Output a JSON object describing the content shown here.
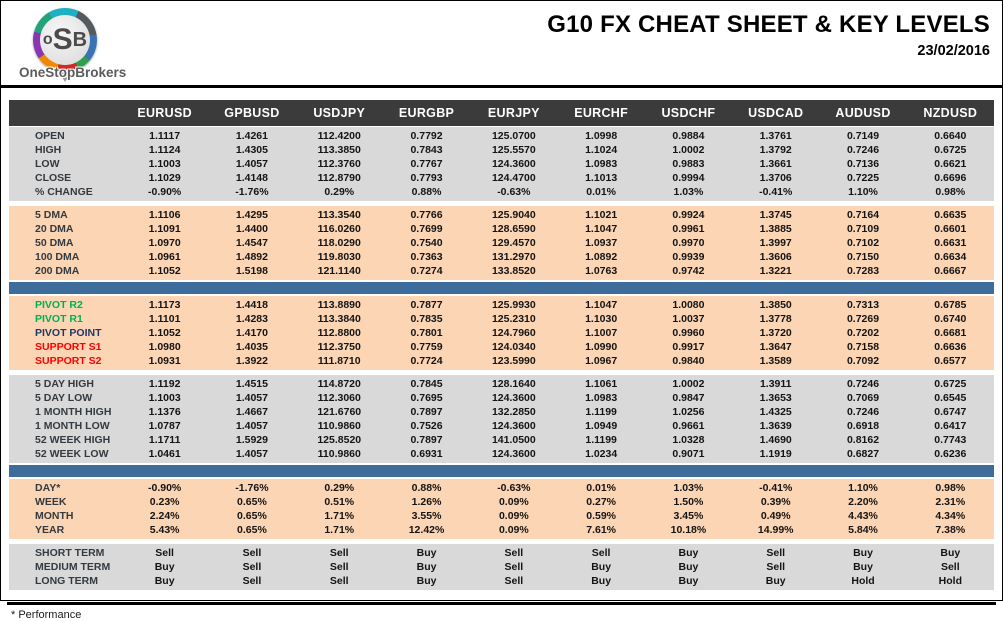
{
  "header": {
    "logo": {
      "part_o": "o",
      "part_s": "S",
      "part_b": "B",
      "brand": "OneStopBrokers"
    },
    "title": "G10 FX CHEAT SHEET & KEY LEVELS",
    "date": "23/02/2016"
  },
  "colors": {
    "header_bg": "#3b3b3b",
    "block_gray": "#d9d9d9",
    "block_peach": "#fcd5b4",
    "bar_blue": "#3f6d9b",
    "green": "#00b050",
    "red": "#ff0000",
    "navy": "#1f3864",
    "label_dark": "#333a40"
  },
  "table": {
    "columns": [
      "EURUSD",
      "GPBUSD",
      "USDJPY",
      "EURGBP",
      "EURJPY",
      "EURCHF",
      "USDCHF",
      "USDCAD",
      "AUDUSD",
      "NZDUSD"
    ],
    "sections": [
      {
        "id": "ohlc",
        "bg": "gray",
        "after": "gap",
        "rows": [
          {
            "label": "OPEN",
            "values": [
              "1.1117",
              "1.4261",
              "112.4200",
              "0.7792",
              "125.0700",
              "1.0998",
              "0.9884",
              "1.3761",
              "0.7149",
              "0.6640"
            ]
          },
          {
            "label": "HIGH",
            "values": [
              "1.1124",
              "1.4305",
              "113.3850",
              "0.7843",
              "125.5570",
              "1.1024",
              "1.0002",
              "1.3792",
              "0.7246",
              "0.6725"
            ]
          },
          {
            "label": "LOW",
            "values": [
              "1.1003",
              "1.4057",
              "112.3760",
              "0.7767",
              "124.3600",
              "1.0983",
              "0.9883",
              "1.3661",
              "0.7136",
              "0.6621"
            ]
          },
          {
            "label": "CLOSE",
            "values": [
              "1.1029",
              "1.4148",
              "112.8790",
              "0.7793",
              "124.4700",
              "1.1013",
              "0.9994",
              "1.3706",
              "0.7225",
              "0.6696"
            ]
          },
          {
            "label": "% CHANGE",
            "values": [
              "-0.90%",
              "-1.76%",
              "0.29%",
              "0.88%",
              "-0.63%",
              "0.01%",
              "1.03%",
              "-0.41%",
              "1.10%",
              "0.98%"
            ]
          }
        ]
      },
      {
        "id": "dma",
        "bg": "peach",
        "after": "divider",
        "rows": [
          {
            "label": "5 DMA",
            "values": [
              "1.1106",
              "1.4295",
              "113.3540",
              "0.7766",
              "125.9040",
              "1.1021",
              "0.9924",
              "1.3745",
              "0.7164",
              "0.6635"
            ]
          },
          {
            "label": "20 DMA",
            "values": [
              "1.1091",
              "1.4400",
              "116.0260",
              "0.7699",
              "128.6590",
              "1.1047",
              "0.9961",
              "1.3885",
              "0.7109",
              "0.6601"
            ]
          },
          {
            "label": "50 DMA",
            "values": [
              "1.0970",
              "1.4547",
              "118.0290",
              "0.7540",
              "129.4570",
              "1.0937",
              "0.9970",
              "1.3997",
              "0.7102",
              "0.6631"
            ]
          },
          {
            "label": "100 DMA",
            "values": [
              "1.0961",
              "1.4892",
              "119.8030",
              "0.7363",
              "131.2970",
              "1.0892",
              "0.9939",
              "1.3606",
              "0.7150",
              "0.6634"
            ]
          },
          {
            "label": "200 DMA",
            "values": [
              "1.1052",
              "1.5198",
              "121.1140",
              "0.7274",
              "133.8520",
              "1.0763",
              "0.9742",
              "1.3221",
              "0.7283",
              "0.6667"
            ]
          }
        ]
      },
      {
        "id": "pivots",
        "bg": "peach",
        "after": "gap",
        "rows": [
          {
            "label": "PIVOT R2",
            "color": "green",
            "values": [
              "1.1173",
              "1.4418",
              "113.8890",
              "0.7877",
              "125.9930",
              "1.1047",
              "1.0080",
              "1.3850",
              "0.7313",
              "0.6785"
            ]
          },
          {
            "label": "PIVOT R1",
            "color": "green",
            "values": [
              "1.1101",
              "1.4283",
              "113.3840",
              "0.7835",
              "125.2310",
              "1.1030",
              "1.0037",
              "1.3778",
              "0.7269",
              "0.6740"
            ]
          },
          {
            "label": "PIVOT POINT",
            "color": "navy",
            "values": [
              "1.1052",
              "1.4170",
              "112.8800",
              "0.7801",
              "124.7960",
              "1.1007",
              "0.9960",
              "1.3720",
              "0.7202",
              "0.6681"
            ]
          },
          {
            "label": "SUPPORT S1",
            "color": "red",
            "values": [
              "1.0980",
              "1.4035",
              "112.3750",
              "0.7759",
              "124.0340",
              "1.0990",
              "0.9917",
              "1.3647",
              "0.7158",
              "0.6636"
            ]
          },
          {
            "label": "SUPPORT S2",
            "color": "red",
            "values": [
              "1.0931",
              "1.3922",
              "111.8710",
              "0.7724",
              "123.5990",
              "1.0967",
              "0.9840",
              "1.3589",
              "0.7092",
              "0.6577"
            ]
          }
        ]
      },
      {
        "id": "ranges",
        "bg": "gray",
        "after": "divider",
        "rows": [
          {
            "label": "5 DAY HIGH",
            "values": [
              "1.1192",
              "1.4515",
              "114.8720",
              "0.7845",
              "128.1640",
              "1.1061",
              "1.0002",
              "1.3911",
              "0.7246",
              "0.6725"
            ]
          },
          {
            "label": "5 DAY LOW",
            "values": [
              "1.1003",
              "1.4057",
              "112.3060",
              "0.7695",
              "124.3600",
              "1.0983",
              "0.9847",
              "1.3653",
              "0.7069",
              "0.6545"
            ]
          },
          {
            "label": "1 MONTH HIGH",
            "values": [
              "1.1376",
              "1.4667",
              "121.6760",
              "0.7897",
              "132.2850",
              "1.1199",
              "1.0256",
              "1.4325",
              "0.7246",
              "0.6747"
            ]
          },
          {
            "label": "1 MONTH LOW",
            "values": [
              "1.0787",
              "1.4057",
              "110.9860",
              "0.7526",
              "124.3600",
              "1.0949",
              "0.9661",
              "1.3639",
              "0.6918",
              "0.6417"
            ]
          },
          {
            "label": "52 WEEK HIGH",
            "values": [
              "1.1711",
              "1.5929",
              "125.8520",
              "0.7897",
              "141.0500",
              "1.1199",
              "1.0328",
              "1.4690",
              "0.8162",
              "0.7743"
            ]
          },
          {
            "label": "52 WEEK LOW",
            "values": [
              "1.0461",
              "1.4057",
              "110.9860",
              "0.6931",
              "124.3600",
              "1.0234",
              "0.9071",
              "1.1919",
              "0.6827",
              "0.6236"
            ]
          }
        ]
      },
      {
        "id": "performance",
        "bg": "peach",
        "after": "gap",
        "rows": [
          {
            "label": "DAY*",
            "values": [
              "-0.90%",
              "-1.76%",
              "0.29%",
              "0.88%",
              "-0.63%",
              "0.01%",
              "1.03%",
              "-0.41%",
              "1.10%",
              "0.98%"
            ]
          },
          {
            "label": "WEEK",
            "values": [
              "0.23%",
              "0.65%",
              "0.51%",
              "1.26%",
              "0.09%",
              "0.27%",
              "1.50%",
              "0.39%",
              "2.20%",
              "2.31%"
            ]
          },
          {
            "label": "MONTH",
            "values": [
              "2.24%",
              "0.65%",
              "1.71%",
              "3.55%",
              "0.09%",
              "0.59%",
              "3.45%",
              "0.49%",
              "4.43%",
              "4.34%"
            ]
          },
          {
            "label": "YEAR",
            "values": [
              "5.43%",
              "0.65%",
              "1.71%",
              "12.42%",
              "0.09%",
              "7.61%",
              "10.18%",
              "14.99%",
              "5.84%",
              "7.38%"
            ]
          }
        ]
      },
      {
        "id": "signals",
        "bg": "gray",
        "signals": true,
        "rows": [
          {
            "label": "SHORT TERM",
            "values": [
              "Sell",
              "Sell",
              "Sell",
              "Buy",
              "Sell",
              "Sell",
              "Buy",
              "Sell",
              "Buy",
              "Buy"
            ]
          },
          {
            "label": "MEDIUM TERM",
            "values": [
              "Buy",
              "Sell",
              "Sell",
              "Buy",
              "Sell",
              "Buy",
              "Buy",
              "Sell",
              "Buy",
              "Sell"
            ]
          },
          {
            "label": "LONG TERM",
            "values": [
              "Buy",
              "Sell",
              "Sell",
              "Buy",
              "Sell",
              "Buy",
              "Buy",
              "Buy",
              "Hold",
              "Hold"
            ]
          }
        ]
      }
    ]
  },
  "footer": {
    "note": "* Performance"
  }
}
